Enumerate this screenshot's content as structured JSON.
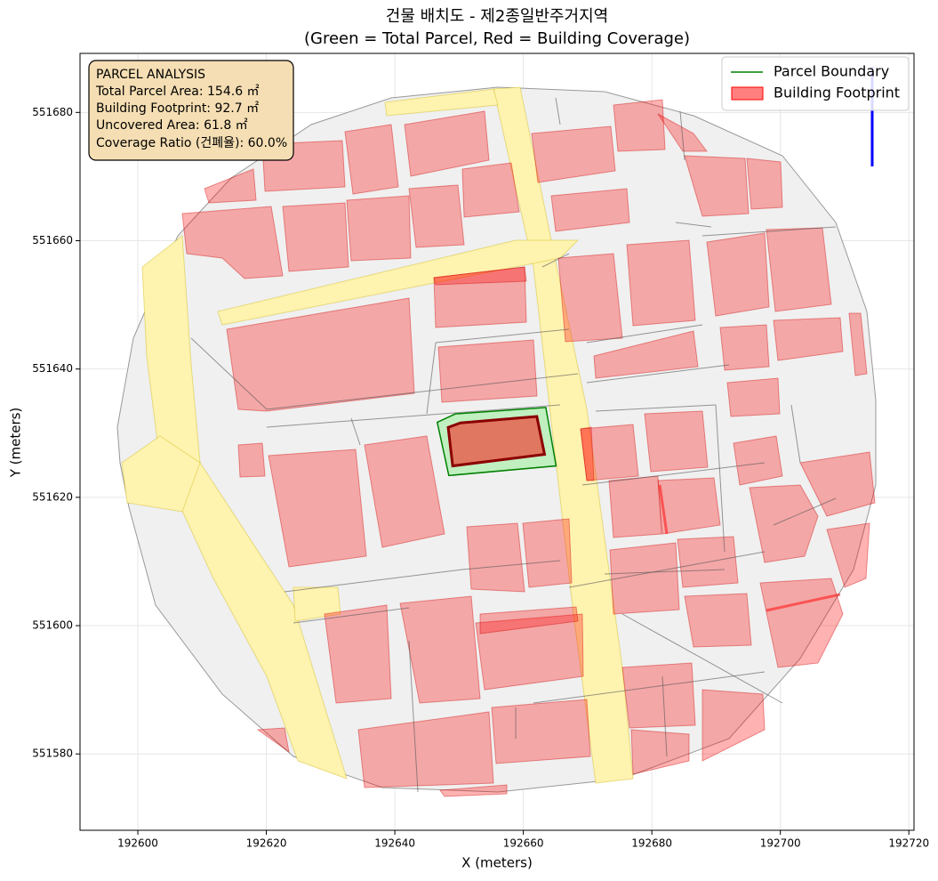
{
  "chart_data": {
    "type": "map",
    "title": "건물 배치도 - 제2종일반주거지역",
    "subtitle": "(Green = Total Parcel, Red = Building Coverage)",
    "xlabel": "X (meters)",
    "ylabel": "Y (meters)",
    "xlim": [
      192591,
      192720.8
    ],
    "ylim": [
      551568.1,
      551689.2
    ],
    "xticks": [
      192600,
      192620,
      192640,
      192660,
      192680,
      192700,
      192720
    ],
    "yticks": [
      551580,
      551600,
      551620,
      551640,
      551660,
      551680
    ],
    "grid": true,
    "legend_loc": "upper right",
    "series": [
      {
        "name": "Parcel Boundary",
        "color": "#008000",
        "fill": "#90ee90",
        "x": [
          192646.6,
          192649.4,
          192663.5,
          192665.1,
          192648.4
        ],
        "y": [
          551631.7,
          551633.0,
          551634.0,
          551624.9,
          551623.4
        ]
      },
      {
        "name": "Building Footprint",
        "color": "#8b0000",
        "fill": "#ff0000",
        "x": [
          192648.3,
          192650.2,
          192662.1,
          192663.3,
          192649.0
        ],
        "y": [
          551630.9,
          551631.6,
          551632.6,
          551626.7,
          551624.9
        ]
      }
    ],
    "annotation": {
      "title": "PARCEL ANALYSIS",
      "lines": [
        "Total Parcel Area: 154.6 ㎡",
        "Building Footprint: 92.7 ㎡",
        "Uncovered Area: 61.8 ㎡",
        "Coverage Ratio (건폐율): 60.0%"
      ]
    }
  }
}
